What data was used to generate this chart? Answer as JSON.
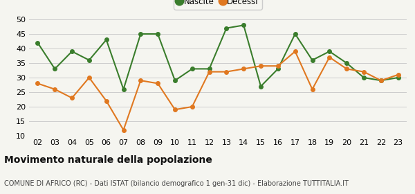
{
  "years": [
    "02",
    "03",
    "04",
    "05",
    "06",
    "07",
    "08",
    "09",
    "10",
    "11",
    "12",
    "13",
    "14",
    "15",
    "16",
    "17",
    "18",
    "19",
    "20",
    "21",
    "22",
    "23"
  ],
  "nascite": [
    42,
    33,
    39,
    36,
    43,
    26,
    45,
    45,
    29,
    33,
    33,
    47,
    48,
    27,
    33,
    45,
    36,
    39,
    35,
    30,
    29,
    30
  ],
  "decessi": [
    28,
    26,
    23,
    30,
    22,
    12,
    29,
    28,
    19,
    20,
    32,
    32,
    33,
    34,
    34,
    39,
    26,
    37,
    33,
    32,
    29,
    31
  ],
  "nascite_color": "#3a7d2c",
  "decessi_color": "#e07820",
  "background_color": "#f5f5f0",
  "grid_color": "#cccccc",
  "ylim_min": 10,
  "ylim_max": 50,
  "yticks": [
    10,
    15,
    20,
    25,
    30,
    35,
    40,
    45,
    50
  ],
  "title": "Movimento naturale della popolazione",
  "subtitle": "COMUNE DI AFRICO (RC) - Dati ISTAT (bilancio demografico 1 gen-31 dic) - Elaborazione TUTTITALIA.IT",
  "legend_nascite": "Nascite",
  "legend_decessi": "Decessi",
  "title_fontsize": 10,
  "subtitle_fontsize": 7,
  "axis_fontsize": 8,
  "legend_fontsize": 8.5,
  "marker_size": 4,
  "line_width": 1.5
}
